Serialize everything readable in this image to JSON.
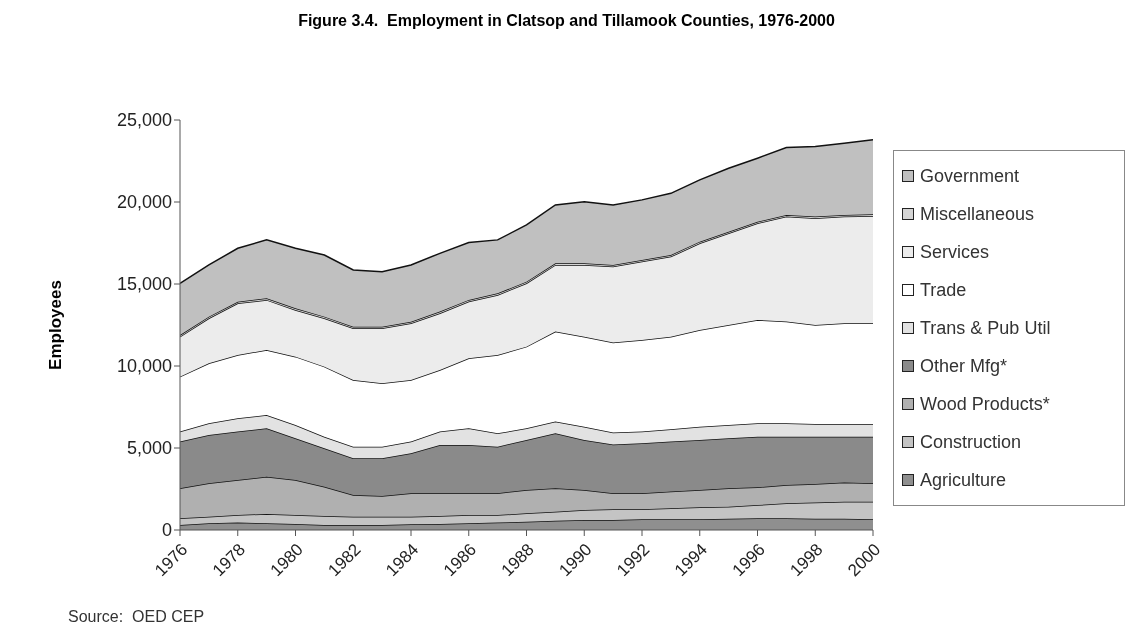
{
  "chart_data": {
    "type": "area",
    "title": "Figure 3.4.  Employment in Clatsop and Tillamook Counties, 1976-2000",
    "ylabel": "Employees",
    "stacked": true,
    "legend": "right",
    "grid": false,
    "x": [
      1976,
      1977,
      1978,
      1979,
      1980,
      1981,
      1982,
      1983,
      1984,
      1985,
      1986,
      1987,
      1988,
      1989,
      1990,
      1991,
      1992,
      1993,
      1994,
      1995,
      1996,
      1997,
      1998,
      1999,
      2000
    ],
    "xlim": [
      1976,
      2000
    ],
    "xticks": [
      1976,
      1978,
      1980,
      1982,
      1984,
      1986,
      1988,
      1990,
      1992,
      1994,
      1996,
      1998,
      2000
    ],
    "ylim": [
      0,
      25000
    ],
    "yticks": [
      0,
      {
        "value": 5000,
        "label": "5,000"
      },
      {
        "value": 10000,
        "label": "10,000"
      },
      {
        "value": 15000,
        "label": "15,000"
      },
      {
        "value": 20000,
        "label": "20,000"
      },
      {
        "value": 25000,
        "label": "25,000"
      }
    ],
    "series": [
      {
        "name": "Agriculture",
        "color": "#8f8f8f",
        "values": [
          300,
          410,
          450,
          410,
          370,
          300,
          300,
          300,
          350,
          370,
          410,
          450,
          510,
          570,
          610,
          610,
          650,
          650,
          650,
          690,
          710,
          710,
          690,
          690,
          650
        ]
      },
      {
        "name": "Construction",
        "color": "#c4c4c4",
        "values": [
          410,
          400,
          460,
          570,
          540,
          550,
          510,
          510,
          460,
          480,
          500,
          460,
          510,
          550,
          610,
          650,
          610,
          670,
          730,
          730,
          810,
          920,
          980,
          1040,
          1080
        ]
      },
      {
        "name": "Wood Products*",
        "color": "#b0b0b0",
        "values": [
          1830,
          2040,
          2140,
          2270,
          2140,
          1790,
          1320,
          1260,
          1430,
          1390,
          1330,
          1330,
          1420,
          1420,
          1220,
          980,
          980,
          1020,
          1060,
          1120,
          1080,
          1110,
          1140,
          1160,
          1120
        ]
      },
      {
        "name": "Other Mfg*",
        "color": "#8a8a8a",
        "values": [
          2850,
          2940,
          2950,
          2950,
          2540,
          2340,
          2240,
          2300,
          2440,
          2940,
          2940,
          2840,
          3050,
          3360,
          3050,
          2980,
          3050,
          3050,
          3050,
          3050,
          3090,
          2950,
          2880,
          2800,
          2840
        ]
      },
      {
        "name": "Trans & Pub Util",
        "color": "#e2e2e2",
        "values": [
          610,
          720,
          810,
          810,
          810,
          710,
          710,
          710,
          710,
          820,
          1020,
          820,
          710,
          710,
          810,
          720,
          710,
          750,
          810,
          810,
          820,
          820,
          780,
          780,
          780
        ]
      },
      {
        "name": "Trade",
        "color": "#ffffff",
        "values": [
          3350,
          3660,
          3860,
          3970,
          4170,
          4270,
          4070,
          3870,
          3760,
          3760,
          4270,
          4770,
          4980,
          5490,
          5490,
          5490,
          5590,
          5650,
          5900,
          6100,
          6300,
          6200,
          6030,
          6130,
          6130
        ]
      },
      {
        "name": "Services",
        "color": "#ececec",
        "values": [
          2440,
          2740,
          3150,
          3050,
          2850,
          2950,
          3150,
          3350,
          3450,
          3460,
          3460,
          3660,
          3860,
          4060,
          4370,
          4630,
          4780,
          4880,
          5280,
          5590,
          5890,
          6400,
          6510,
          6510,
          6550
        ]
      },
      {
        "name": "Miscellaneous",
        "color": "#d4d4d4",
        "values": [
          100,
          100,
          100,
          100,
          100,
          100,
          100,
          100,
          100,
          100,
          100,
          100,
          100,
          100,
          100,
          100,
          100,
          100,
          100,
          100,
          100,
          100,
          100,
          100,
          100
        ]
      },
      {
        "name": "Government",
        "color": "#c0c0c0",
        "values": [
          3150,
          3150,
          3260,
          3560,
          3660,
          3760,
          3460,
          3350,
          3460,
          3550,
          3500,
          3260,
          3460,
          3560,
          3760,
          3660,
          3660,
          3760,
          3770,
          3870,
          3870,
          4110,
          4270,
          4370,
          4540
        ]
      }
    ],
    "annotations": [
      "Source:  OED CEP"
    ]
  }
}
